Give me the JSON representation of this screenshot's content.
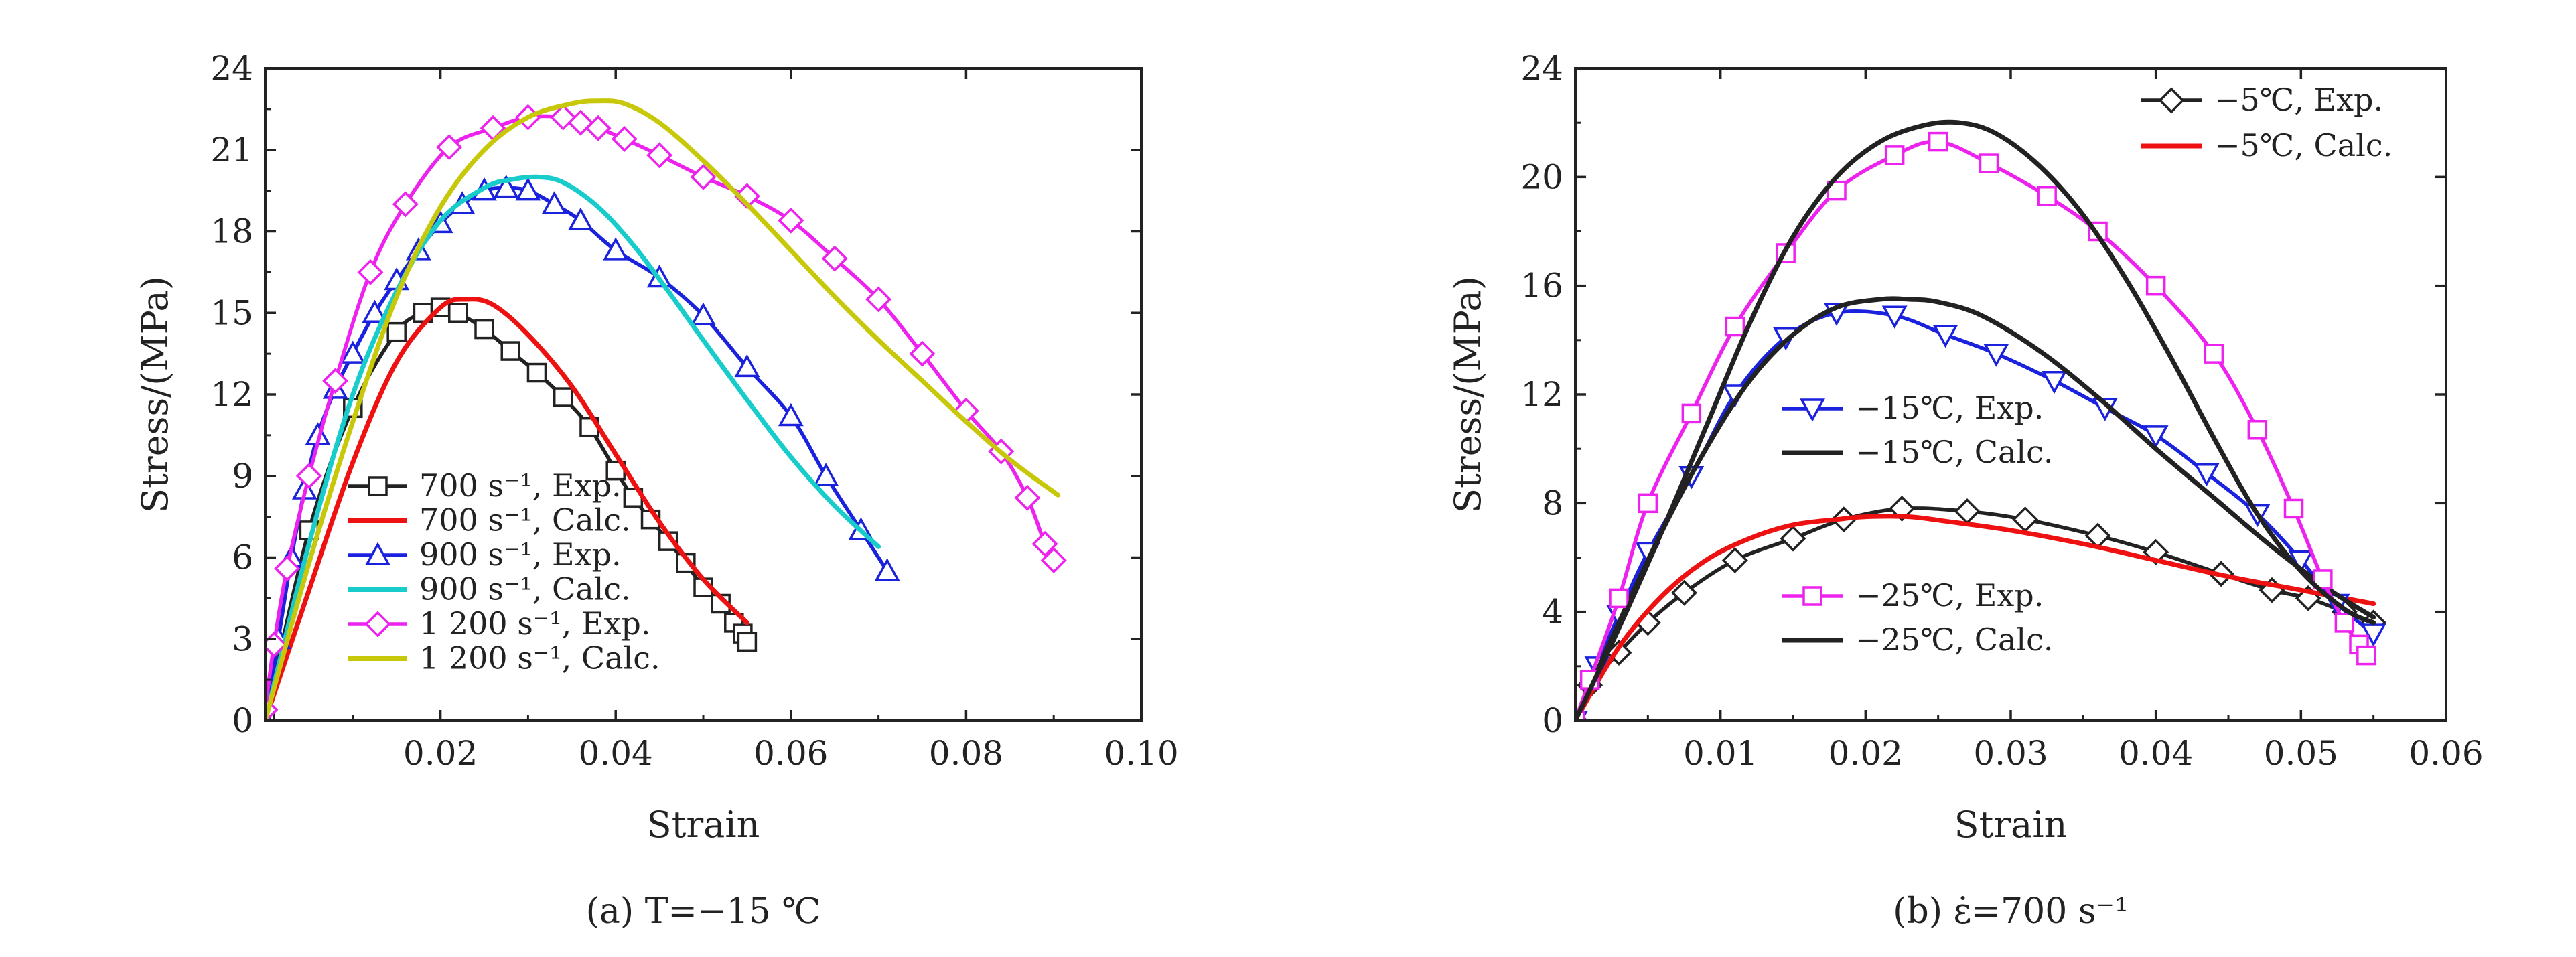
{
  "chart_data": [
    {
      "type": "line",
      "caption": "(a)  T=−15 ℃",
      "xlabel": "Strain",
      "ylabel": "Stress/(MPa)",
      "xlim": [
        0,
        0.1
      ],
      "ylim": [
        0,
        24
      ],
      "xticks": [
        "0.02",
        "0.04",
        "0.06",
        "0.08",
        "0.10"
      ],
      "yticks": [
        "0",
        "3",
        "6",
        "9",
        "12",
        "15",
        "18",
        "21",
        "24"
      ],
      "legend_position": "lower-left",
      "series": [
        {
          "name": "700 s⁻¹, Exp.",
          "color": "#222222",
          "marker": "square",
          "x": [
            0.0,
            0.005,
            0.01,
            0.015,
            0.018,
            0.02,
            0.022,
            0.025,
            0.028,
            0.031,
            0.034,
            0.037,
            0.04,
            0.042,
            0.044,
            0.046,
            0.048,
            0.05,
            0.052,
            0.0535,
            0.0545,
            0.055
          ],
          "y": [
            0.0,
            7.0,
            11.5,
            14.3,
            15.0,
            15.2,
            15.0,
            14.4,
            13.6,
            12.8,
            11.9,
            10.8,
            9.2,
            8.2,
            7.4,
            6.6,
            5.8,
            4.9,
            4.3,
            3.6,
            3.2,
            2.9
          ]
        },
        {
          "name": "700 s⁻¹, Calc.",
          "color": "#ee1111",
          "marker": "none",
          "x": [
            0.0,
            0.005,
            0.01,
            0.015,
            0.02,
            0.023,
            0.026,
            0.03,
            0.035,
            0.04,
            0.045,
            0.05,
            0.055
          ],
          "y": [
            0.0,
            4.8,
            9.5,
            13.2,
            15.2,
            15.5,
            15.3,
            14.2,
            12.3,
            9.8,
            7.3,
            5.2,
            3.6
          ]
        },
        {
          "name": "900 s⁻¹, Exp.",
          "color": "#1a22dd",
          "marker": "triangle-up",
          "x": [
            0.0,
            0.0015,
            0.003,
            0.0045,
            0.006,
            0.008,
            0.01,
            0.0125,
            0.015,
            0.0175,
            0.02,
            0.0225,
            0.025,
            0.0275,
            0.03,
            0.033,
            0.036,
            0.04,
            0.045,
            0.05,
            0.055,
            0.06,
            0.064,
            0.068,
            0.071
          ],
          "y": [
            0.0,
            3.0,
            6.0,
            8.5,
            10.5,
            12.2,
            13.5,
            15.0,
            16.2,
            17.3,
            18.3,
            19.0,
            19.5,
            19.6,
            19.5,
            19.0,
            18.4,
            17.3,
            16.3,
            14.9,
            13.0,
            11.2,
            9.0,
            7.0,
            5.5
          ]
        },
        {
          "name": "900 s⁻¹, Calc.",
          "color": "#19cccc",
          "marker": "none",
          "x": [
            0.0,
            0.005,
            0.01,
            0.015,
            0.02,
            0.025,
            0.028,
            0.031,
            0.034,
            0.038,
            0.042,
            0.046,
            0.05,
            0.055,
            0.06,
            0.065,
            0.07
          ],
          "y": [
            0.0,
            6.5,
            12.0,
            15.8,
            18.4,
            19.6,
            19.9,
            20.0,
            19.8,
            18.9,
            17.5,
            15.8,
            14.0,
            11.8,
            9.7,
            7.9,
            6.4
          ]
        },
        {
          "name": "1 200 s⁻¹, Exp.",
          "color": "#ee22ee",
          "marker": "diamond",
          "x": [
            0.0,
            0.001,
            0.0025,
            0.005,
            0.008,
            0.012,
            0.016,
            0.021,
            0.026,
            0.03,
            0.034,
            0.036,
            0.038,
            0.041,
            0.045,
            0.05,
            0.055,
            0.06,
            0.065,
            0.07,
            0.075,
            0.08,
            0.084,
            0.087,
            0.089,
            0.09
          ],
          "y": [
            0.4,
            2.8,
            5.6,
            9.0,
            12.5,
            16.5,
            19.0,
            21.1,
            21.8,
            22.2,
            22.2,
            22.0,
            21.8,
            21.4,
            20.8,
            20.0,
            19.3,
            18.4,
            17.0,
            15.5,
            13.5,
            11.4,
            9.9,
            8.2,
            6.5,
            5.9
          ]
        },
        {
          "name": "1 200 s⁻¹, Calc.",
          "color": "#c8c80a",
          "marker": "none",
          "x": [
            0.0,
            0.005,
            0.01,
            0.015,
            0.02,
            0.025,
            0.03,
            0.035,
            0.038,
            0.041,
            0.045,
            0.05,
            0.055,
            0.06,
            0.065,
            0.07,
            0.075,
            0.08,
            0.085,
            0.0905
          ],
          "y": [
            0.0,
            5.8,
            11.0,
            15.6,
            18.9,
            21.0,
            22.2,
            22.7,
            22.8,
            22.7,
            22.0,
            20.6,
            19.0,
            17.3,
            15.6,
            14.0,
            12.5,
            11.0,
            9.6,
            8.3
          ]
        }
      ]
    },
    {
      "type": "line",
      "caption": "(b)  ε̇=700 s⁻¹",
      "xlabel": "Strain",
      "ylabel": "Stress/(MPa)",
      "xlim": [
        0,
        0.06
      ],
      "ylim": [
        0,
        24
      ],
      "xticks": [
        "0.01",
        "0.02",
        "0.03",
        "0.04",
        "0.05",
        "0.06"
      ],
      "yticks": [
        "0",
        "4",
        "8",
        "12",
        "16",
        "20",
        "24"
      ],
      "legend_position": "split: top-right, center, lower-center",
      "series": [
        {
          "name": "−5℃, Exp.",
          "color": "#222222",
          "marker": "diamond",
          "x": [
            0.0,
            0.001,
            0.003,
            0.005,
            0.0075,
            0.011,
            0.015,
            0.0185,
            0.0225,
            0.027,
            0.031,
            0.036,
            0.04,
            0.0445,
            0.048,
            0.0505,
            0.053,
            0.055
          ],
          "y": [
            0.0,
            1.3,
            2.5,
            3.6,
            4.7,
            5.9,
            6.7,
            7.4,
            7.8,
            7.7,
            7.4,
            6.8,
            6.2,
            5.4,
            4.8,
            4.5,
            4.0,
            3.6
          ]
        },
        {
          "name": "−5℃, Calc.",
          "color": "#ee1111",
          "marker": "none",
          "x": [
            0.0,
            0.003,
            0.006,
            0.009,
            0.012,
            0.015,
            0.018,
            0.02,
            0.023,
            0.026,
            0.03,
            0.035,
            0.04,
            0.045,
            0.05,
            0.055
          ],
          "y": [
            0.0,
            2.7,
            4.6,
            5.9,
            6.7,
            7.2,
            7.4,
            7.5,
            7.5,
            7.3,
            7.0,
            6.5,
            5.9,
            5.3,
            4.8,
            4.3
          ]
        },
        {
          "name": "−15℃, Exp.",
          "color": "#1a22dd",
          "marker": "triangle-down",
          "x": [
            0.0,
            0.0015,
            0.003,
            0.005,
            0.008,
            0.011,
            0.0145,
            0.018,
            0.022,
            0.0255,
            0.029,
            0.033,
            0.0365,
            0.04,
            0.0435,
            0.047,
            0.05,
            0.0525,
            0.055
          ],
          "y": [
            0.0,
            2.0,
            3.9,
            6.2,
            9.0,
            12.0,
            14.1,
            15.0,
            14.9,
            14.2,
            13.5,
            12.5,
            11.5,
            10.5,
            9.1,
            7.6,
            5.9,
            4.3,
            3.2
          ]
        },
        {
          "name": "−15℃, Calc.",
          "color": "#222222",
          "marker": "none",
          "x": [
            0.0,
            0.003,
            0.006,
            0.009,
            0.012,
            0.015,
            0.018,
            0.021,
            0.023,
            0.025,
            0.028,
            0.032,
            0.036,
            0.04,
            0.044,
            0.048,
            0.052,
            0.055
          ],
          "y": [
            0.0,
            3.6,
            7.0,
            10.0,
            12.5,
            14.2,
            15.2,
            15.5,
            15.5,
            15.4,
            14.9,
            13.6,
            11.9,
            10.0,
            8.2,
            6.4,
            4.8,
            3.8
          ]
        },
        {
          "name": "−25℃, Exp.",
          "color": "#ee22ee",
          "marker": "square",
          "x": [
            0.0,
            0.001,
            0.003,
            0.005,
            0.008,
            0.011,
            0.0145,
            0.018,
            0.022,
            0.025,
            0.0285,
            0.0325,
            0.036,
            0.04,
            0.044,
            0.047,
            0.0495,
            0.0515,
            0.053,
            0.054,
            0.0545
          ],
          "y": [
            0.0,
            1.5,
            4.5,
            8.0,
            11.3,
            14.5,
            17.2,
            19.5,
            20.8,
            21.3,
            20.5,
            19.3,
            18.0,
            16.0,
            13.5,
            10.7,
            7.8,
            5.2,
            3.6,
            2.8,
            2.4
          ]
        },
        {
          "name": "−25℃, Calc.",
          "color": "#222222",
          "marker": "none",
          "x": [
            0.0,
            0.003,
            0.006,
            0.009,
            0.012,
            0.015,
            0.018,
            0.021,
            0.024,
            0.0265,
            0.029,
            0.032,
            0.035,
            0.038,
            0.041,
            0.044,
            0.047,
            0.05,
            0.053,
            0.055
          ],
          "y": [
            0.0,
            3.4,
            7.0,
            10.8,
            14.6,
            17.8,
            20.0,
            21.3,
            21.9,
            22.0,
            21.6,
            20.4,
            18.6,
            16.2,
            13.4,
            10.4,
            7.6,
            5.5,
            4.1,
            3.6
          ]
        }
      ]
    }
  ]
}
